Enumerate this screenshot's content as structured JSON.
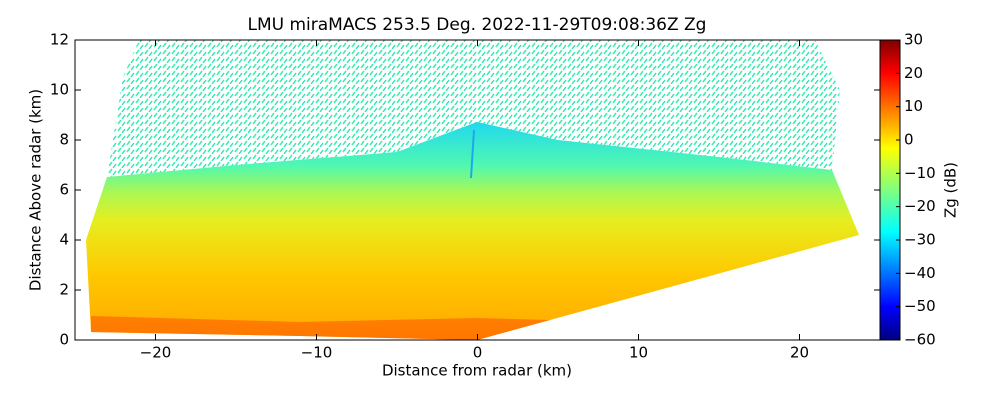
{
  "chart_data": {
    "type": "radar-rhi",
    "title": "LMU miraMACS 253.5 Deg. 2022-11-29T09:08:36Z  Zg",
    "xlabel": "Distance from radar (km)",
    "ylabel": "Distance Above radar  (km)",
    "xlim": [
      -25,
      25
    ],
    "xticks": [
      {
        "value": -20,
        "label": "−20"
      },
      {
        "value": -10,
        "label": "−10"
      },
      0,
      10,
      20
    ],
    "ylim": [
      0,
      12
    ],
    "yticks": [
      0,
      2,
      4,
      6,
      8,
      10,
      12
    ],
    "colorbar": {
      "label": "Zg (dB)",
      "colormap": "jet",
      "lim": [
        -60,
        30
      ],
      "ticks": [
        {
          "value": -60,
          "label": "−60"
        },
        {
          "value": -50,
          "label": "−50"
        },
        {
          "value": -40,
          "label": "−40"
        },
        {
          "value": -30,
          "label": "−30"
        },
        {
          "value": -20,
          "label": "−20"
        },
        {
          "value": -10,
          "label": "−10"
        },
        0,
        10,
        20,
        30
      ]
    }
  }
}
